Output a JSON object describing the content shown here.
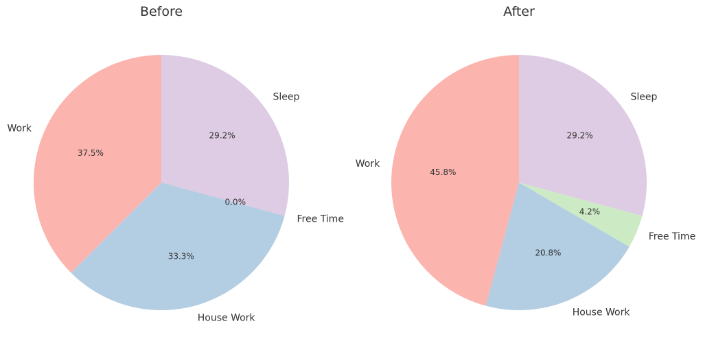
{
  "chart_data": [
    {
      "type": "pie",
      "title": "Before",
      "categories": [
        "Sleep",
        "Free Time",
        "House Work",
        "Work"
      ],
      "values": [
        29.2,
        0.0,
        33.3,
        37.5
      ],
      "value_labels": [
        "29.2%",
        "0.0%",
        "33.3%",
        "37.5%"
      ],
      "colors": [
        "#decbe4",
        "#ccebc5",
        "#b3cde3",
        "#fbb4ae"
      ],
      "start": "top",
      "direction": "clockwise",
      "legend": "none"
    },
    {
      "type": "pie",
      "title": "After",
      "categories": [
        "Sleep",
        "Free Time",
        "House Work",
        "Work"
      ],
      "values": [
        29.2,
        4.2,
        20.8,
        45.8
      ],
      "value_labels": [
        "29.2%",
        "4.2%",
        "20.8%",
        "45.8%"
      ],
      "colors": [
        "#decbe4",
        "#ccebc5",
        "#b3cde3",
        "#fbb4ae"
      ],
      "start": "top",
      "direction": "clockwise",
      "legend": "none"
    }
  ]
}
